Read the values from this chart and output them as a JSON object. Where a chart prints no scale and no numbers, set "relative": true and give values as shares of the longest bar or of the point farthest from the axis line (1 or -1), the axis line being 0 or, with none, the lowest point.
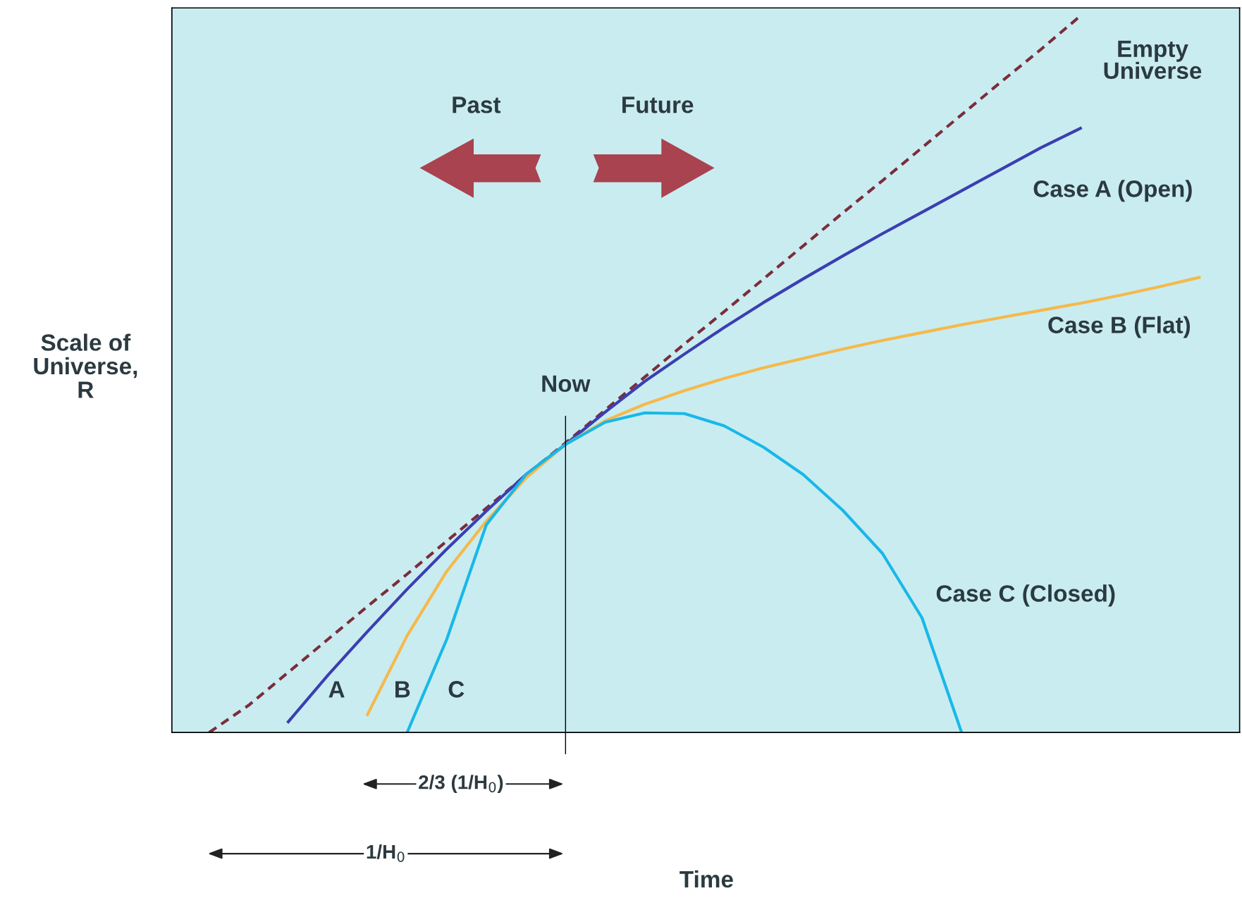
{
  "chart_data": {
    "type": "line",
    "relative": true,
    "ylabel": "Scale of\nUniverse,\nR",
    "categories": [
      null,
      null,
      null,
      null,
      null,
      null,
      null,
      null,
      null,
      null,
      null,
      null,
      null,
      null,
      null,
      null,
      null,
      null,
      null,
      null,
      null,
      null,
      null,
      null,
      null,
      null
    ],
    "series": [
      {
        "name": "Empty\nUniverse",
        "color": "#7b2d3a",
        "line_style": "dashed",
        "values": [
          0.0,
          0.038,
          0.084,
          0.13,
          0.176,
          0.221,
          0.267,
          0.313,
          0.359,
          0.404,
          0.45,
          0.496,
          0.542,
          0.587,
          0.633,
          0.679,
          0.725,
          0.77,
          0.816,
          0.862,
          0.908,
          0.953,
          1.0,
          null,
          null,
          null
        ]
      },
      {
        "name": "Case A (Open)",
        "color": "#3b3fb0",
        "line_style": "solid",
        "values": [
          null,
          null,
          0.015,
          0.08,
          0.141,
          0.2,
          0.256,
          0.309,
          0.36,
          0.402,
          0.447,
          0.49,
          0.528,
          0.565,
          0.6,
          0.633,
          0.665,
          0.696,
          0.726,
          0.756,
          0.786,
          0.816,
          0.843,
          null,
          null,
          null
        ]
      },
      {
        "name": "Case B (Flat)",
        "color": "#f5b94a",
        "line_style": "solid",
        "values": [
          null,
          null,
          null,
          null,
          0.025,
          0.135,
          0.225,
          0.295,
          0.355,
          0.402,
          0.435,
          0.458,
          0.477,
          0.494,
          0.509,
          0.522,
          0.535,
          0.547,
          0.558,
          0.569,
          0.579,
          0.589,
          0.599,
          0.61,
          0.622,
          0.635
        ]
      },
      {
        "name": "Case C (Closed)",
        "color": "#18b8e8",
        "line_style": "solid",
        "values": [
          null,
          null,
          null,
          null,
          null,
          0.0,
          0.13,
          0.29,
          0.36,
          0.402,
          0.433,
          0.446,
          0.445,
          0.428,
          0.398,
          0.36,
          0.31,
          0.25,
          0.16,
          0.0,
          null,
          null,
          null,
          null,
          null,
          null
        ]
      }
    ],
    "annotations": [
      "Past",
      "Future",
      "Now",
      "A",
      "B",
      "C",
      "2/3 (1/H$_{0}$)",
      "1/H$_{0}$",
      "Time"
    ],
    "legend": false,
    "marker": "none"
  }
}
